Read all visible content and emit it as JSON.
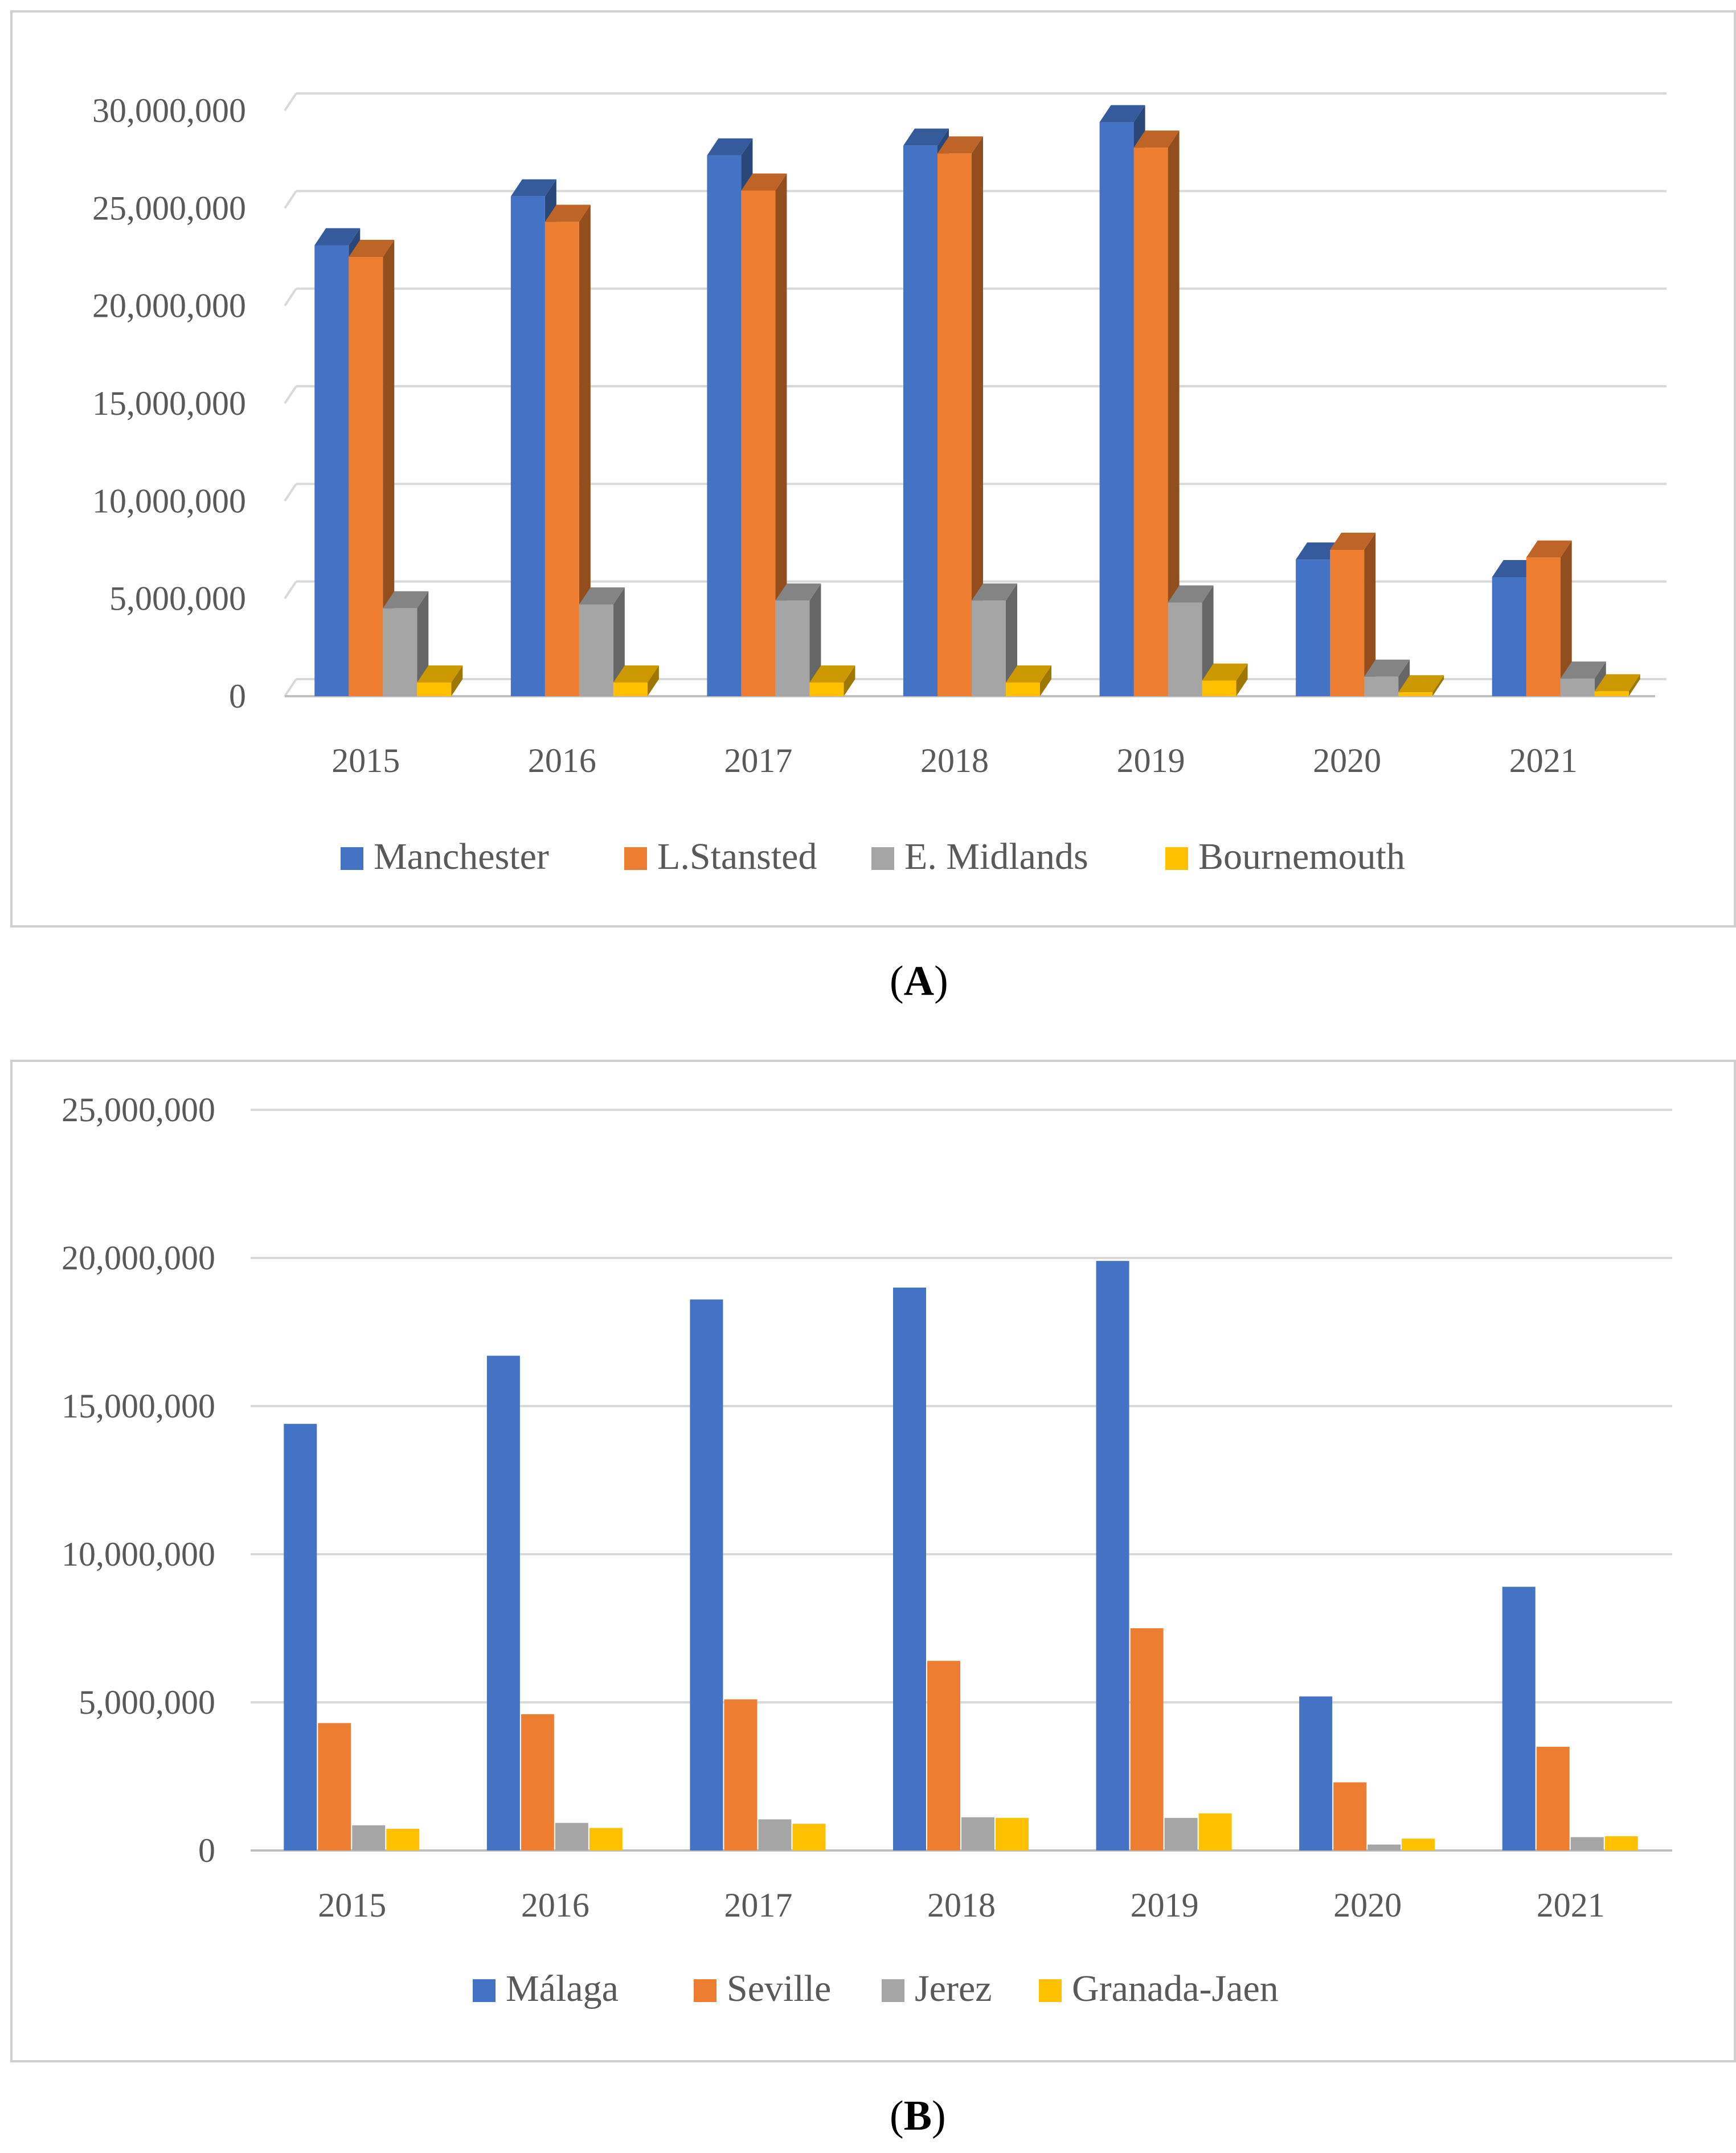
{
  "captions": {
    "a": "A",
    "b": "B"
  },
  "colors": {
    "blue": "#4472c4",
    "orange": "#ed7d31",
    "gray": "#a5a5a5",
    "yellow": "#ffc000",
    "grid": "#d9d9d9",
    "axis": "#bfbfbf"
  },
  "chart_data": [
    {
      "id": "A",
      "type": "bar",
      "style": "3d",
      "title": "",
      "xlabel": "",
      "ylabel": "",
      "categories": [
        "2015",
        "2016",
        "2017",
        "2018",
        "2019",
        "2020",
        "2021"
      ],
      "ylim": [
        0,
        30000000
      ],
      "yticks": [
        0,
        5000000,
        10000000,
        15000000,
        20000000,
        25000000,
        30000000
      ],
      "ytick_labels": [
        "0",
        "5,000,000",
        "10,000,000",
        "15,000,000",
        "20,000,000",
        "25,000,000",
        "30,000,000"
      ],
      "grid": true,
      "legend_position": "bottom",
      "series": [
        {
          "name": "Manchester",
          "color": "#4472c4",
          "values": [
            23100000,
            25600000,
            27700000,
            28200000,
            29400000,
            7000000,
            6100000
          ]
        },
        {
          "name": "L.Stansted",
          "color": "#ed7d31",
          "values": [
            22500000,
            24300000,
            25900000,
            27800000,
            28100000,
            7500000,
            7100000
          ]
        },
        {
          "name": "E. Midlands",
          "color": "#a5a5a5",
          "values": [
            4500000,
            4700000,
            4900000,
            4900000,
            4800000,
            1000000,
            900000
          ]
        },
        {
          "name": "Bournemouth",
          "color": "#ffc000",
          "values": [
            700000,
            700000,
            700000,
            700000,
            800000,
            200000,
            250000
          ]
        }
      ]
    },
    {
      "id": "B",
      "type": "bar",
      "title": "",
      "xlabel": "",
      "ylabel": "",
      "categories": [
        "2015",
        "2016",
        "2017",
        "2018",
        "2019",
        "2020",
        "2021"
      ],
      "ylim": [
        0,
        25000000
      ],
      "yticks": [
        0,
        5000000,
        10000000,
        15000000,
        20000000,
        25000000
      ],
      "ytick_labels": [
        "0",
        "5,000,000",
        "10,000,000",
        "15,000,000",
        "20,000,000",
        "25,000,000"
      ],
      "grid": true,
      "legend_position": "bottom",
      "series": [
        {
          "name": "Málaga",
          "color": "#4472c4",
          "values": [
            14400000,
            16700000,
            18600000,
            19000000,
            19900000,
            5200000,
            8900000
          ]
        },
        {
          "name": "Seville",
          "color": "#ed7d31",
          "values": [
            4300000,
            4600000,
            5100000,
            6400000,
            7500000,
            2300000,
            3500000
          ]
        },
        {
          "name": "Jerez",
          "color": "#a5a5a5",
          "values": [
            850000,
            930000,
            1050000,
            1120000,
            1100000,
            200000,
            450000
          ]
        },
        {
          "name": "Granada-Jaen",
          "color": "#ffc000",
          "values": [
            730000,
            760000,
            900000,
            1100000,
            1250000,
            400000,
            480000
          ]
        }
      ]
    }
  ]
}
